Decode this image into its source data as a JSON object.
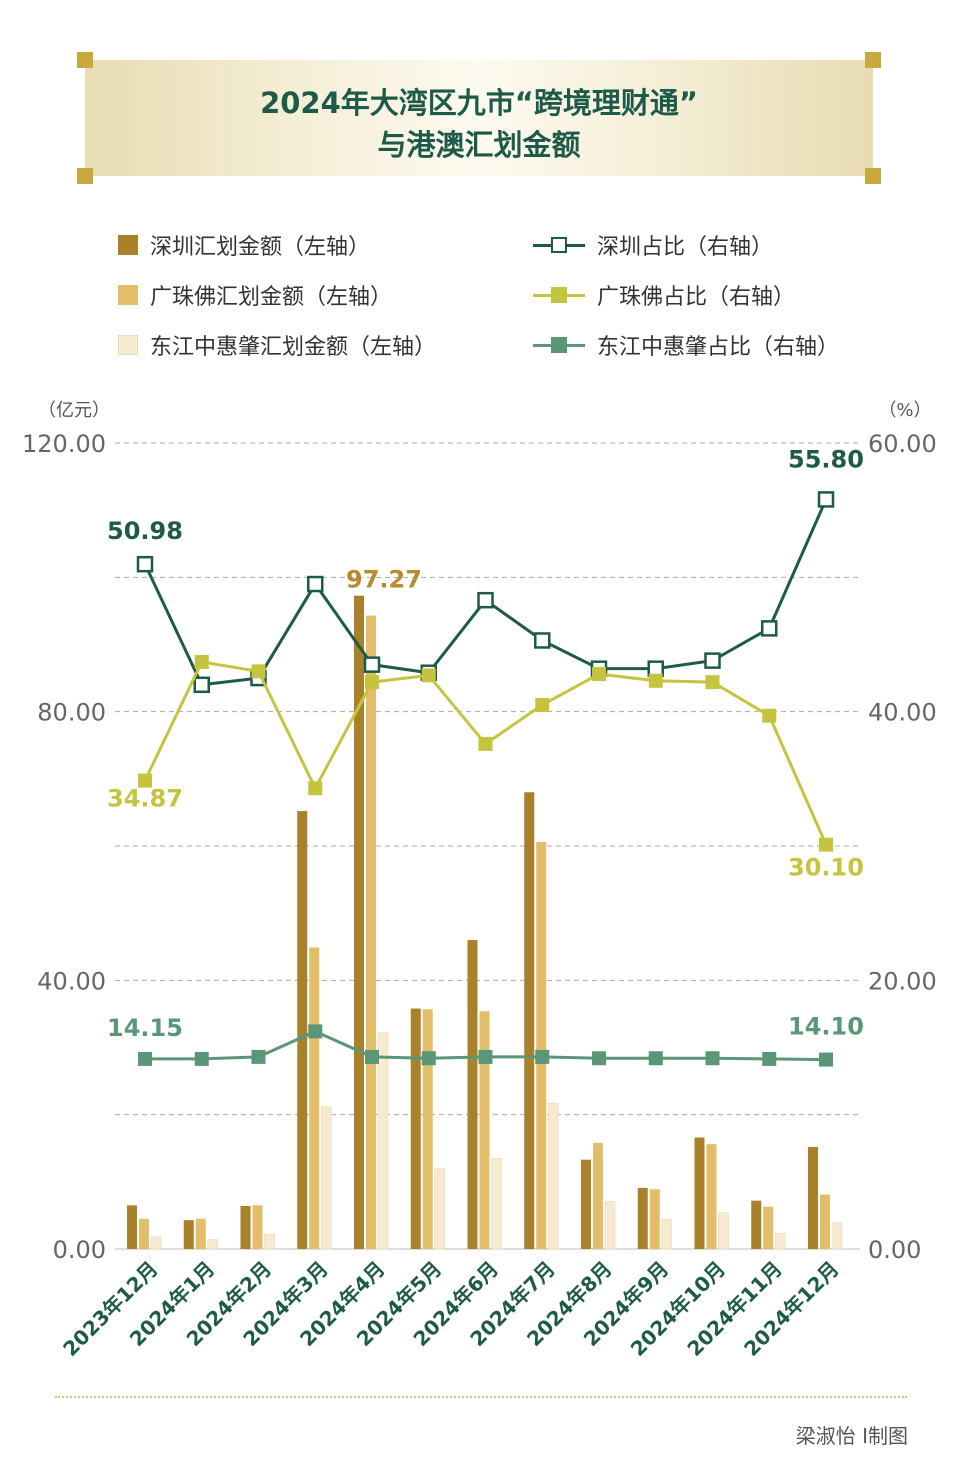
{
  "title": {
    "line1": "2024年大湾区九市“跨境理财通”",
    "line2": "与港澳汇划金额"
  },
  "legend": [
    {
      "label": "深圳汇划金额（左轴）",
      "kind": "bar",
      "color": "#a8812a"
    },
    {
      "label": "广珠佛汇划金额（左轴）",
      "kind": "bar",
      "color": "#e2be6a"
    },
    {
      "label": "东江中惠肇汇划金额（左轴）",
      "kind": "bar",
      "color": "#f8ead0"
    },
    {
      "label": "深圳占比（右轴）",
      "kind": "line-hollow",
      "color": "#1e5a4a"
    },
    {
      "label": "广珠佛占比（右轴）",
      "kind": "line",
      "color": "#c5c43e"
    },
    {
      "label": "东江中惠肇占比（右轴）",
      "kind": "line",
      "color": "#5a9678"
    }
  ],
  "credit": "梁淑怡 I制图",
  "chart_data": {
    "type": "bar",
    "categories": [
      "2023年12月",
      "2024年1月",
      "2024年2月",
      "2024年3月",
      "2024年4月",
      "2024年5月",
      "2024年6月",
      "2024年7月",
      "2024年8月",
      "2024年9月",
      "2024年10月",
      "2024年11月",
      "2024年12月"
    ],
    "left_axis": {
      "unit": "（亿元）",
      "min": 0,
      "max": 120,
      "ticks": [
        "0.00",
        "40.00",
        "80.00",
        "120.00"
      ],
      "gridlines": [
        20,
        40,
        60,
        80,
        100,
        120
      ]
    },
    "right_axis": {
      "unit": "（%）",
      "min": 0,
      "max": 60,
      "ticks": [
        "0.00",
        "20.00",
        "40.00",
        "60.00"
      ]
    },
    "grid": true,
    "bar_series": [
      {
        "name": "深圳汇划金额（左轴）",
        "color": "#a8812a",
        "values": [
          6.5,
          4.3,
          6.4,
          65.2,
          97.27,
          35.8,
          46.0,
          68.0,
          13.3,
          9.1,
          16.6,
          7.2,
          15.2
        ]
      },
      {
        "name": "广珠佛汇划金额（左轴）",
        "color": "#e2be6a",
        "values": [
          4.5,
          4.5,
          6.5,
          44.9,
          94.3,
          35.7,
          35.4,
          60.6,
          15.8,
          8.9,
          15.6,
          6.3,
          8.1
        ]
      },
      {
        "name": "东江中惠肇汇划金额（左轴）",
        "color": "#f8ead0",
        "values": [
          1.8,
          1.4,
          2.2,
          21.2,
          32.2,
          12.0,
          13.5,
          21.7,
          7.1,
          4.4,
          5.4,
          2.3,
          3.9
        ]
      }
    ],
    "line_series": [
      {
        "name": "深圳占比（右轴）",
        "color": "#1e5a4a",
        "marker": "hollow-square",
        "values": [
          50.98,
          42.0,
          42.5,
          49.5,
          43.5,
          42.9,
          48.3,
          45.3,
          43.2,
          43.2,
          43.8,
          46.2,
          55.8
        ],
        "labels": {
          "0": "50.98",
          "12": "55.80"
        }
      },
      {
        "name": "广珠佛占比（右轴）",
        "color": "#c5c43e",
        "marker": "square",
        "values": [
          34.87,
          43.7,
          43.0,
          34.3,
          42.2,
          42.7,
          37.6,
          40.5,
          42.8,
          42.3,
          42.2,
          39.7,
          30.1
        ],
        "labels": {
          "0": "34.87",
          "12": "30.10"
        }
      },
      {
        "name": "东江中惠肇占比（右轴）",
        "color": "#5a9678",
        "marker": "square",
        "values": [
          14.15,
          14.15,
          14.3,
          16.2,
          14.3,
          14.2,
          14.3,
          14.3,
          14.2,
          14.2,
          14.2,
          14.15,
          14.1
        ],
        "labels": {
          "0": "14.15",
          "12": "14.10"
        }
      }
    ],
    "annotations": [
      {
        "series": "深圳汇划金额（左轴）",
        "index": 4,
        "text": "97.27",
        "color": "#b88a2e"
      }
    ]
  }
}
